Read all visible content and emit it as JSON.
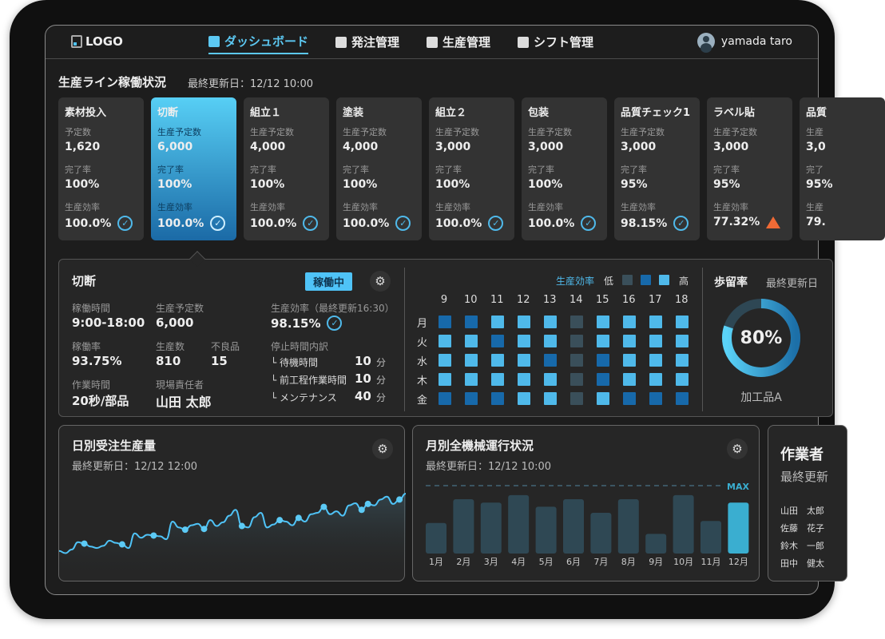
{
  "header": {
    "logo": "LOGO",
    "nav": [
      {
        "label": "ダッシュボード",
        "icon": "dashboard-icon",
        "active": true
      },
      {
        "label": "発注管理",
        "icon": "clipboard-icon"
      },
      {
        "label": "生産管理",
        "icon": "checkbox-icon"
      },
      {
        "label": "シフト管理",
        "icon": "badge-icon"
      }
    ],
    "user": "yamada taro"
  },
  "section": {
    "title": "生産ライン稼働状況",
    "updated": "最終更新日：12/12 10:00"
  },
  "cards": [
    {
      "title": "素材投入",
      "l1": "予定数",
      "v1": "1,620",
      "l2": "完了率",
      "v2": "100%",
      "l3": "生産効率",
      "v3": "100.0%",
      "status": "ok"
    },
    {
      "title": "切断",
      "l1": "生産予定数",
      "v1": "6,000",
      "l2": "完了率",
      "v2": "100%",
      "l3": "生産効率",
      "v3": "100.0%",
      "status": "ok",
      "active": true
    },
    {
      "title": "組立１",
      "l1": "生産予定数",
      "v1": "4,000",
      "l2": "完了率",
      "v2": "100%",
      "l3": "生産効率",
      "v3": "100.0%",
      "status": "ok"
    },
    {
      "title": "塗装",
      "l1": "生産予定数",
      "v1": "4,000",
      "l2": "完了率",
      "v2": "100%",
      "l3": "生産効率",
      "v3": "100.0%",
      "status": "ok"
    },
    {
      "title": "組立２",
      "l1": "生産予定数",
      "v1": "3,000",
      "l2": "完了率",
      "v2": "100%",
      "l3": "生産効率",
      "v3": "100.0%",
      "status": "ok"
    },
    {
      "title": "包装",
      "l1": "生産予定数",
      "v1": "3,000",
      "l2": "完了率",
      "v2": "100%",
      "l3": "生産効率",
      "v3": "100.0%",
      "status": "ok"
    },
    {
      "title": "品質チェック1",
      "l1": "生産予定数",
      "v1": "3,000",
      "l2": "完了率",
      "v2": "95%",
      "l3": "生産効率",
      "v3": "98.15%",
      "status": "ok"
    },
    {
      "title": "ラベル貼",
      "l1": "生産予定数",
      "v1": "3,000",
      "l2": "完了率",
      "v2": "95%",
      "l3": "生産効率",
      "v3": "77.32%",
      "status": "warn"
    },
    {
      "title": "品質",
      "l1": "生産",
      "v1": "3,0",
      "l2": "完了",
      "v2": "95%",
      "l3": "生産",
      "v3": "79.",
      "status": "none"
    }
  ],
  "detail": {
    "title": "切断",
    "status": "稼働中",
    "fields": {
      "op_time_l": "稼働時間",
      "op_time": "9:00-18:00",
      "plan_l": "生産予定数",
      "plan": "6,000",
      "rate_l": "稼働率",
      "rate": "93.75%",
      "prod_l": "生産数",
      "prod": "810",
      "defect_l": "不良品",
      "defect": "15",
      "work_l": "作業時間",
      "work": "20秒/部品",
      "mgr_l": "現場責任者",
      "mgr": "山田 太郎",
      "eff_l": "生産効率（最終更新16:30）",
      "eff": "98.15%",
      "stop_l": "停止時間内訳"
    },
    "stops": [
      {
        "label": "└ 待機時間",
        "value": "10",
        "unit": "分"
      },
      {
        "label": "└ 前工程作業時間",
        "value": "10",
        "unit": "分"
      },
      {
        "label": "└ メンテナンス",
        "value": "40",
        "unit": "分"
      }
    ]
  },
  "heatmap": {
    "legend_title": "生産効率",
    "low": "低",
    "high": "高",
    "colors": {
      "low": "#3a4f5a",
      "mid": "#1769aa",
      "high": "#4fb9ea"
    },
    "hours": [
      "9",
      "10",
      "11",
      "12",
      "13",
      "14",
      "15",
      "16",
      "17",
      "18"
    ],
    "days": [
      "月",
      "火",
      "水",
      "木",
      "金"
    ],
    "levels": [
      [
        "mid",
        "mid",
        "high",
        "high",
        "high",
        "low",
        "high",
        "high",
        "high",
        "high"
      ],
      [
        "high",
        "high",
        "mid",
        "high",
        "high",
        "low",
        "high",
        "high",
        "high",
        "high"
      ],
      [
        "high",
        "high",
        "high",
        "high",
        "mid",
        "low",
        "mid",
        "high",
        "high",
        "high"
      ],
      [
        "high",
        "high",
        "high",
        "high",
        "high",
        "low",
        "mid",
        "high",
        "high",
        "high"
      ],
      [
        "mid",
        "mid",
        "mid",
        "high",
        "high",
        "low",
        "high",
        "mid",
        "mid",
        "mid"
      ]
    ]
  },
  "yield": {
    "title": "歩留率",
    "updated": "最終更新日",
    "percent": 80,
    "label": "80%",
    "product": "加工品A"
  },
  "daily": {
    "title": "日別受注生産量",
    "updated": "最終更新日：12/12 12:00",
    "values": [
      10,
      7,
      12,
      22,
      20,
      16,
      14,
      17,
      24,
      21,
      19,
      14,
      34,
      28,
      32,
      31,
      30,
      26,
      50,
      42,
      39,
      45,
      47,
      40,
      52,
      44,
      49,
      58,
      66,
      44,
      42,
      56,
      62,
      42,
      46,
      52,
      50,
      45,
      55,
      50,
      60,
      62,
      70,
      60,
      64,
      58,
      72,
      75,
      66,
      74,
      72,
      80,
      84,
      74,
      80,
      88
    ],
    "markers": [
      4,
      10,
      15,
      20,
      23,
      29,
      35,
      38,
      42,
      48,
      49,
      54
    ]
  },
  "monthly": {
    "title": "月別全機械運行状況",
    "updated": "最終更新日：12/12 10:00",
    "max_label": "MAX",
    "categories": [
      "1月",
      "2月",
      "3月",
      "4月",
      "5月",
      "6月",
      "7月",
      "8月",
      "9月",
      "10月",
      "11月",
      "12月"
    ],
    "values": [
      45,
      80,
      75,
      86,
      69,
      80,
      60,
      80,
      29,
      86,
      48,
      75
    ],
    "max": 100,
    "highlight": 11,
    "colors": {
      "bar": "#2f4854",
      "highlight": "#3aaed0"
    }
  },
  "workers": {
    "title": "作業者",
    "updated": "最終更新",
    "names": [
      "山田　太郎",
      "佐藤　花子",
      "鈴木　一郎",
      "田中　健太"
    ]
  }
}
